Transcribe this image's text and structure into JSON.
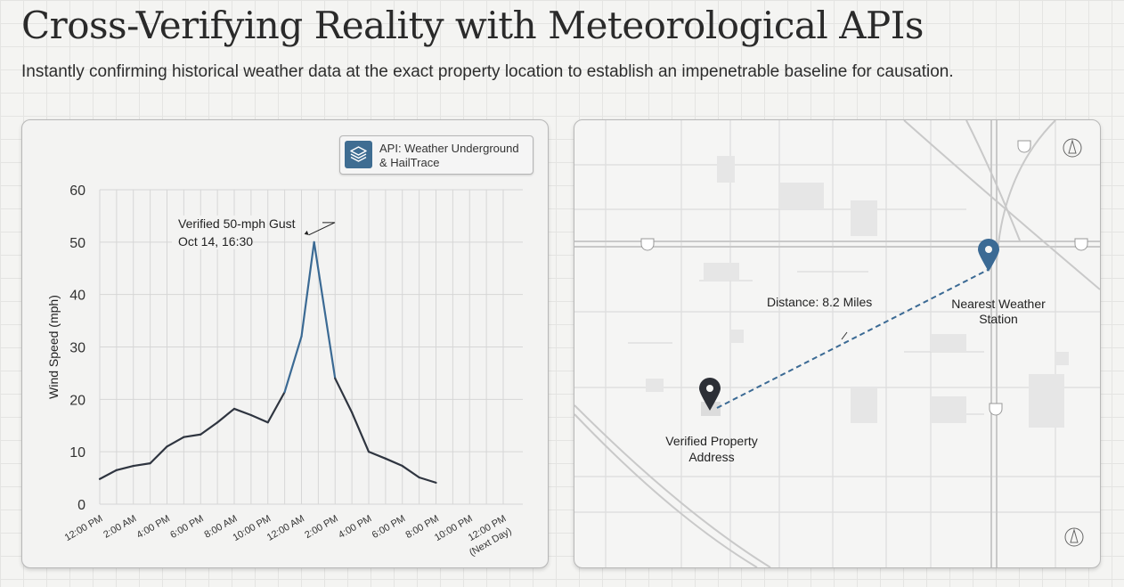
{
  "header": {
    "title": "Cross-Verifying Reality with Meteorological APIs",
    "subtitle": "Instantly confirming historical weather data at the exact property location to establish an impenetrable baseline for causation."
  },
  "legend": {
    "line1": "API: Weather Underground",
    "line2": "& HailTrace",
    "icon": "layers-icon"
  },
  "chart_data": {
    "type": "line",
    "title": "",
    "xlabel": "",
    "ylabel": "Wind Speed (mph)",
    "ylim": [
      0,
      60
    ],
    "yticks": [
      0,
      10,
      20,
      30,
      40,
      50,
      60
    ],
    "xticks": [
      "12:00 PM",
      "2:00 AM",
      "4:00 PM",
      "6:00 PM",
      "8:00 AM",
      "10:00 PM",
      "12:00 AM",
      "2:00 PM",
      "4:00 PM",
      "6:00 PM",
      "8:00 PM",
      "10:00 PM",
      "12:00 PM"
    ],
    "xtick_last_sub": "(Next Day)",
    "xlim": [
      0,
      24
    ],
    "series": [
      {
        "name": "Wind Speed",
        "color": "#2f3540",
        "peak_color": "#3b6a94",
        "x": [
          0,
          1,
          2,
          3,
          4,
          5,
          6,
          7,
          8,
          9,
          10,
          11,
          12,
          12.75,
          14,
          15,
          16,
          17,
          18,
          19,
          20
        ],
        "y": [
          4.8,
          6.5,
          7.3,
          7.8,
          11,
          12.8,
          13.3,
          15.6,
          18.2,
          17,
          15.6,
          21.4,
          32,
          50,
          24,
          17.5,
          10,
          8.7,
          7.3,
          5.1,
          4.1
        ]
      }
    ],
    "annotation": {
      "line1": "Verified 50-mph Gust",
      "line2": "Oct 14, 16:30",
      "x": 12.75,
      "y": 50
    },
    "grid": true
  },
  "map": {
    "distance_label": "Distance: 8.2 Miles",
    "station_label_1": "Nearest Weather",
    "station_label_2": "Station",
    "property_label_1": "Verified Property",
    "property_label_2": "Address",
    "route_color": "#3b6a94"
  }
}
